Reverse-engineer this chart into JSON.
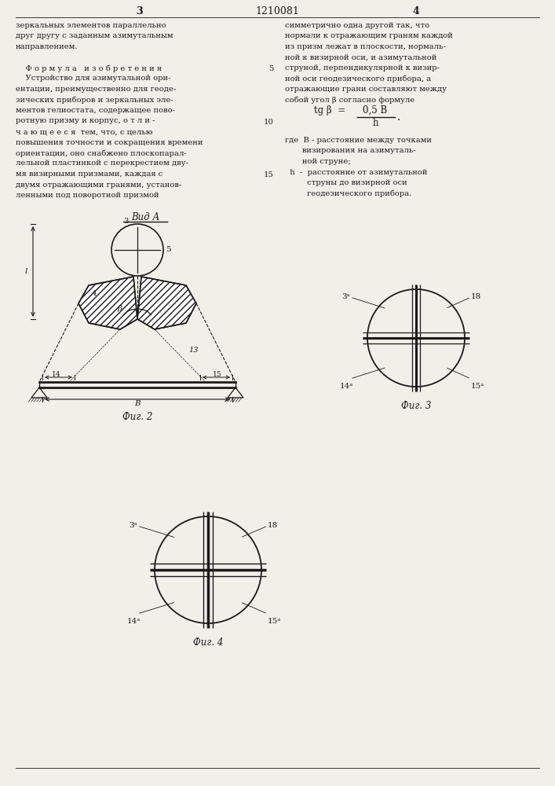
{
  "page_width": 7.07,
  "page_height": 10.0,
  "bg_color": "#f0efe8",
  "text_color": "#1a1a1a",
  "patent_number": "1210081",
  "page_left": "3",
  "page_right": "4",
  "col1_text": [
    "зеркальных элементов параллельно",
    "друг другу с заданным азимутальным",
    "направлением.",
    "",
    "    Ф о р м у л а   и з о б р е т е н и я",
    "    Устройство для азимутальной ори-",
    "ентации, преимущественно для геоде-",
    "зических приборов и зеркальных эле-",
    "ментов гелиостата, содержащее пово-",
    "ротную призму и корпус, о т л и -",
    "ч а ю щ е е с я  тем, что, с целью",
    "повышения точности и сокращения времени",
    "ориентации, оно снабжено плоскопарал-",
    "лельной пластинкой с перекрестием дву-",
    "мя визирными призмами, каждая с",
    "двумя отражающими гранями, установ-",
    "ленными под поворотной призмой"
  ],
  "col2_text": [
    "симметрично одна другой так, что",
    "нормали к отражающим граням каждой",
    "из призм лежат в плоскости, нормаль-",
    "ной к визирной оси, и азимутальной",
    "струной, перпендикулярной к визир-",
    "ной оси геодезического прибора, а",
    "отражающие грани составляют между",
    "собой угол β согласно формуле"
  ],
  "where_lines": [
    "где  B - расстояние между точками",
    "       визирования на азимуталь-",
    "       ной струне;",
    "  h  -  расстояние от азимутальной",
    "         струны до визирной оси",
    "         геодезического прибора."
  ]
}
